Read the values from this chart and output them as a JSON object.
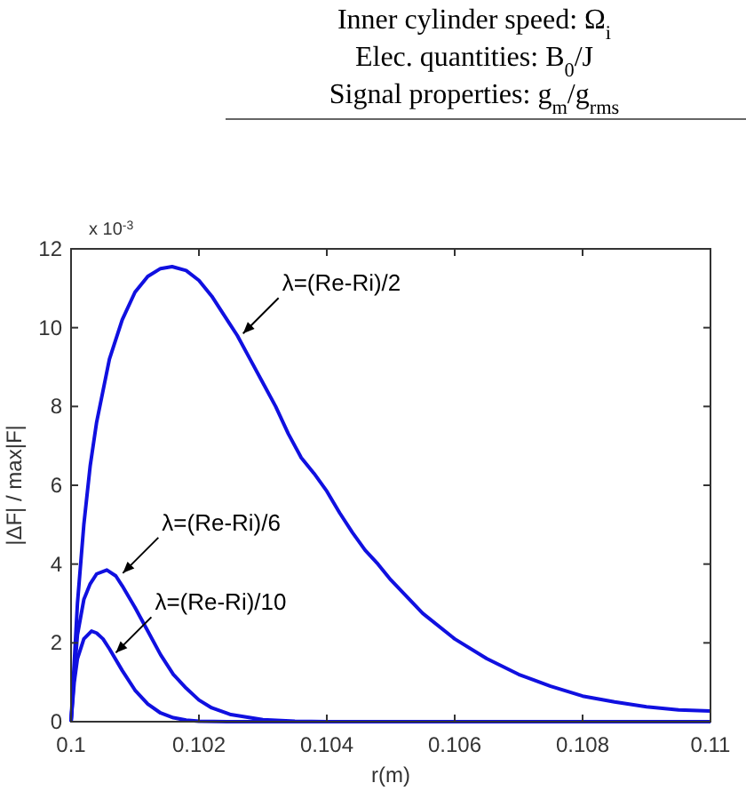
{
  "chart_data": {
    "type": "line",
    "xlabel": "r(m)",
    "ylabel": "|ΔF| / max|F|",
    "xlim": [
      0.1,
      0.11
    ],
    "xticks": [
      0.1,
      0.102,
      0.104,
      0.106,
      0.108,
      0.11
    ],
    "ylim": [
      0,
      12
    ],
    "yticks": [
      0,
      2,
      4,
      6,
      8,
      10,
      12
    ],
    "grid": false,
    "line_style": "solid",
    "marker": "none",
    "series": [
      {
        "color": "#1010e0",
        "x": [
          0.1,
          0.10005,
          0.1001,
          0.1002,
          0.1003,
          0.1004,
          0.1006,
          0.1008,
          0.101,
          0.1012,
          0.1014,
          0.10158,
          0.1018,
          0.102,
          0.1022,
          0.1024,
          0.1026,
          0.1028,
          0.103,
          0.1032,
          0.1034,
          0.1036,
          0.1038,
          0.104,
          0.1042,
          0.1044,
          0.1046,
          0.1048,
          0.105,
          0.1055,
          0.106,
          0.1065,
          0.107,
          0.1075,
          0.108,
          0.1085,
          0.109,
          0.1095,
          0.11
        ],
        "values": [
          0,
          1.5,
          3,
          5,
          6.5,
          7.6,
          9.2,
          10.2,
          10.9,
          11.3,
          11.5,
          11.55,
          11.45,
          11.2,
          10.8,
          10.3,
          9.8,
          9.2,
          8.6,
          8,
          7.3,
          6.7,
          6.3,
          5.85,
          5.3,
          4.8,
          4.35,
          4,
          3.6,
          2.75,
          2.1,
          1.6,
          1.2,
          0.9,
          0.65,
          0.5,
          0.38,
          0.3,
          0.27
        ]
      },
      {
        "color": "#1010e0",
        "x": [
          0.1,
          0.10005,
          0.1001,
          0.1002,
          0.1003,
          0.1004,
          0.10056,
          0.1007,
          0.1008,
          0.101,
          0.1012,
          0.1014,
          0.1016,
          0.1018,
          0.102,
          0.1022,
          0.1025,
          0.103,
          0.1035,
          0.104,
          0.11
        ],
        "values": [
          0,
          1.2,
          2.2,
          3.1,
          3.5,
          3.75,
          3.85,
          3.7,
          3.45,
          2.9,
          2.3,
          1.7,
          1.2,
          0.85,
          0.55,
          0.35,
          0.18,
          0.05,
          0.01,
          0,
          0
        ]
      },
      {
        "color": "#1010e0",
        "x": [
          0.1,
          0.10005,
          0.1001,
          0.1002,
          0.10032,
          0.1004,
          0.1005,
          0.1006,
          0.1008,
          0.101,
          0.1012,
          0.1014,
          0.1016,
          0.1018,
          0.102,
          0.1025,
          0.11
        ],
        "values": [
          0,
          1,
          1.6,
          2.1,
          2.3,
          2.25,
          2.1,
          1.85,
          1.3,
          0.8,
          0.45,
          0.22,
          0.1,
          0.04,
          0.01,
          0,
          0
        ]
      }
    ],
    "annotations": [
      "Inner cylinder speed: Ω$_{i}$",
      "Elec. quantities: B$_{0}$/J",
      "Signal properties: g$_{m}$/g$_{rms}$",
      "x 10$^{-3}$",
      {
        "text": "λ=(Re-Ri)/2",
        "x": 0.10269,
        "y": 9.85
      },
      {
        "text": "λ=(Re-Ri)/6",
        "x": 0.10081,
        "y": 3.77
      },
      {
        "text": "λ=(Re-Ri)/10",
        "x": 0.1007,
        "y": 1.75
      }
    ]
  }
}
